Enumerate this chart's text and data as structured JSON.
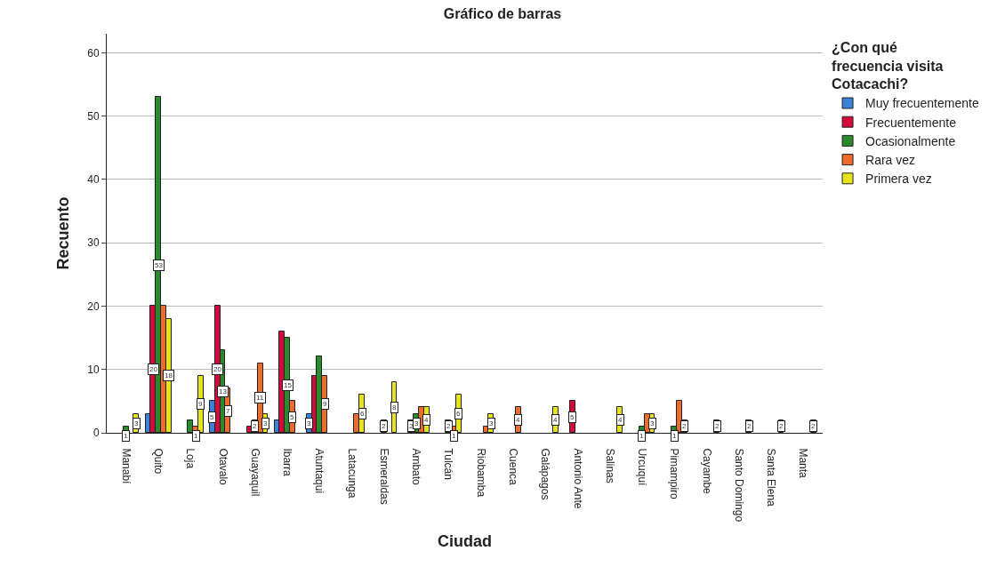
{
  "chart_data": {
    "type": "bar",
    "title": "Gráfico de barras",
    "xlabel": "Ciudad",
    "ylabel": "Recuento",
    "legend_title": "¿Con qué frecuencia visita Cotacachi?",
    "categories": [
      "Manabí",
      "Quito",
      "Loja",
      "Otavalo",
      "Guayaquil",
      "Ibarra",
      "Atuntaqui",
      "Latacunga",
      "Esmeraldas",
      "Ambato",
      "Tulcán",
      "Riobamba",
      "Cuenca",
      "Galápagos",
      "Antonio Ante",
      "Salinas",
      "Urcuquí",
      "Pimampiro",
      "Cayambe",
      "Santo Domingo",
      "Santa Elena",
      "Manta"
    ],
    "series": [
      {
        "name": "Muy frecuentemente",
        "color": "#3a82d8",
        "values": [
          null,
          3,
          null,
          5,
          null,
          2,
          3,
          null,
          null,
          null,
          null,
          null,
          null,
          null,
          null,
          null,
          null,
          null,
          null,
          null,
          null,
          null
        ],
        "value_labels": [
          null,
          null,
          null,
          "5",
          null,
          null,
          "3",
          null,
          null,
          null,
          null,
          null,
          null,
          null,
          null,
          null,
          null,
          null,
          null,
          null,
          null,
          null
        ]
      },
      {
        "name": "Frecuentemente",
        "color": "#d30a3c",
        "values": [
          null,
          20,
          null,
          20,
          1,
          16,
          9,
          null,
          null,
          2,
          null,
          null,
          null,
          null,
          5,
          null,
          null,
          null,
          null,
          null,
          null,
          null
        ],
        "value_labels": [
          null,
          "20",
          null,
          "20",
          null,
          null,
          null,
          null,
          null,
          "2",
          null,
          null,
          null,
          null,
          "5",
          null,
          null,
          null,
          null,
          null,
          null,
          null
        ]
      },
      {
        "name": "Ocasionalmente",
        "color": "#2a8a2e",
        "values": [
          1,
          53,
          2,
          13,
          2,
          15,
          12,
          null,
          2,
          3,
          2,
          null,
          null,
          null,
          null,
          null,
          1,
          1,
          null,
          null,
          null,
          null
        ],
        "value_labels": [
          "1",
          "53",
          null,
          "13",
          "2",
          "15",
          null,
          null,
          "2",
          "3",
          "2",
          null,
          null,
          null,
          null,
          null,
          "1",
          "1",
          null,
          null,
          null,
          null
        ]
      },
      {
        "name": "Rara vez",
        "color": "#ec6b2d",
        "values": [
          null,
          20,
          1,
          7,
          11,
          5,
          9,
          3,
          null,
          4,
          1,
          1,
          4,
          null,
          null,
          null,
          3,
          5,
          null,
          null,
          null,
          null
        ],
        "value_labels": [
          null,
          null,
          "1",
          "7",
          "11",
          "5",
          "9",
          null,
          null,
          null,
          "1",
          null,
          "4",
          null,
          null,
          null,
          null,
          null,
          null,
          null,
          null,
          null
        ]
      },
      {
        "name": "Primera vez",
        "color": "#e8e41c",
        "values": [
          3,
          18,
          9,
          null,
          3,
          null,
          null,
          6,
          8,
          4,
          6,
          3,
          null,
          4,
          null,
          4,
          3,
          2,
          2,
          2,
          2,
          2
        ],
        "value_labels": [
          "3",
          "18",
          "9",
          null,
          "3",
          null,
          null,
          "6",
          "8",
          "4",
          "6",
          "3",
          null,
          "4",
          null,
          "4",
          "3",
          "2",
          "2",
          "2",
          "2",
          "2"
        ]
      }
    ],
    "ylim": [
      0,
      63
    ],
    "yticks": [
      0,
      10,
      20,
      30,
      40,
      50,
      60
    ],
    "grid": "y",
    "legend": "top right"
  }
}
